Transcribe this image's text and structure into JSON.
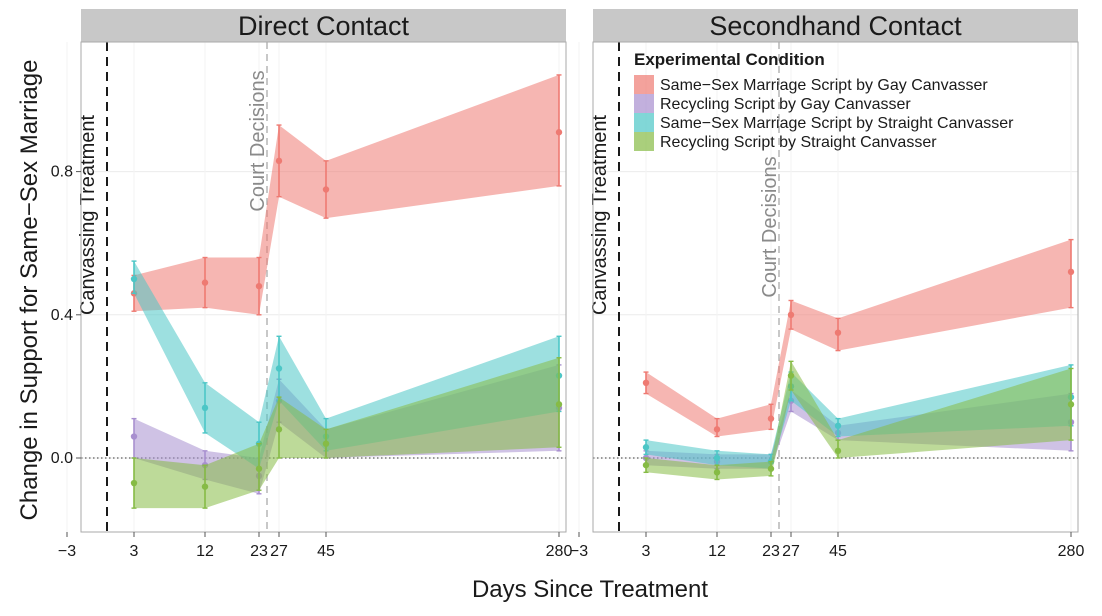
{
  "chart_data": {
    "type": "line",
    "ylabel": "Change in Support for Same−Sex Marriage",
    "xlabel": "Days Since Treatment",
    "xlim": [
      -3,
      280
    ],
    "ylim": [
      -0.22,
      1.21
    ],
    "x_ticks": [
      {
        "value": -3,
        "label": "−3"
      },
      {
        "value": 3,
        "label": "3"
      },
      {
        "value": 12,
        "label": "12"
      },
      {
        "value": 23,
        "label": "23"
      },
      {
        "value": 27,
        "label": "27"
      },
      {
        "value": 45,
        "label": "45"
      },
      {
        "value": 280,
        "label": "280"
      }
    ],
    "y_ticks": [
      {
        "value": 0.0,
        "label": "0.0"
      },
      {
        "value": 0.4,
        "label": "0.4"
      },
      {
        "value": 0.8,
        "label": "0.8"
      }
    ],
    "grid": true,
    "reference_lines": {
      "zero": 0,
      "treatment_label": "Canvassing Treatment",
      "court_label": "Court Decisions"
    },
    "legend": {
      "title": "Experimental Condition",
      "placement": "top-right",
      "entries": [
        "Same−Sex Marriage Script by Gay Canvasser",
        "Recycling Script by Gay Canvasser",
        "Same−Sex Marriage Script by Straight Canvasser",
        "Recycling Script by Straight Canvasser"
      ]
    },
    "colors": {
      "ssm_gay": "#ee7a72",
      "rec_gay": "#a88fcf",
      "ssm_straight": "#4cc6c6",
      "rec_straight": "#86bb45"
    },
    "x": [
      3,
      12,
      23,
      27,
      45,
      280
    ],
    "panels": [
      {
        "title": "Direct Contact",
        "series": [
          {
            "name": "Same−Sex Marriage Script by Gay Canvasser",
            "color_key": "ssm_gay",
            "values": [
              0.46,
              0.49,
              0.48,
              0.83,
              0.75,
              0.91
            ],
            "lower": [
              0.41,
              0.42,
              0.4,
              0.73,
              0.67,
              0.76
            ],
            "upper": [
              0.51,
              0.56,
              0.56,
              0.93,
              0.83,
              1.07
            ]
          },
          {
            "name": "Recycling Script by Gay Canvasser",
            "color_key": "rec_gay",
            "values": [
              0.06,
              -0.02,
              -0.05,
              0.16,
              0.04,
              0.14
            ],
            "lower": [
              0.0,
              -0.06,
              -0.1,
              0.1,
              0.0,
              0.02
            ],
            "upper": [
              0.11,
              0.02,
              0.0,
              0.22,
              0.08,
              0.26
            ]
          },
          {
            "name": "Same−Sex Marriage Script by Straight Canvasser",
            "color_key": "ssm_straight",
            "values": [
              0.5,
              0.14,
              0.04,
              0.25,
              0.06,
              0.23
            ],
            "lower": [
              0.46,
              0.07,
              -0.03,
              0.16,
              0.02,
              0.13
            ],
            "upper": [
              0.55,
              0.21,
              0.1,
              0.34,
              0.11,
              0.34
            ]
          },
          {
            "name": "Recycling Script by Straight Canvasser",
            "color_key": "rec_straight",
            "values": [
              -0.07,
              -0.08,
              -0.03,
              0.08,
              0.04,
              0.15
            ],
            "lower": [
              -0.14,
              -0.14,
              -0.09,
              0.0,
              0.0,
              0.03
            ],
            "upper": [
              0.0,
              -0.02,
              0.04,
              0.17,
              0.08,
              0.28
            ]
          }
        ]
      },
      {
        "title": "Secondhand Contact",
        "series": [
          {
            "name": "Same−Sex Marriage Script by Gay Canvasser",
            "color_key": "ssm_gay",
            "values": [
              0.21,
              0.08,
              0.11,
              0.4,
              0.35,
              0.52
            ],
            "lower": [
              0.18,
              0.06,
              0.08,
              0.36,
              0.3,
              0.42
            ],
            "upper": [
              0.24,
              0.11,
              0.15,
              0.44,
              0.39,
              0.61
            ]
          },
          {
            "name": "Recycling Script by Gay Canvasser",
            "color_key": "rec_gay",
            "values": [
              0.0,
              -0.01,
              -0.01,
              0.16,
              0.07,
              0.1
            ],
            "lower": [
              -0.02,
              -0.03,
              -0.03,
              0.13,
              0.05,
              0.02
            ],
            "upper": [
              0.02,
              0.01,
              0.01,
              0.19,
              0.09,
              0.18
            ]
          },
          {
            "name": "Same−Sex Marriage Script by Straight Canvasser",
            "color_key": "ssm_straight",
            "values": [
              0.03,
              0.0,
              -0.01,
              0.2,
              0.09,
              0.17
            ],
            "lower": [
              0.01,
              -0.02,
              -0.03,
              0.16,
              0.06,
              0.09
            ],
            "upper": [
              0.05,
              0.02,
              0.01,
              0.24,
              0.11,
              0.26
            ]
          },
          {
            "name": "Recycling Script by Straight Canvasser",
            "color_key": "rec_straight",
            "values": [
              -0.02,
              -0.04,
              -0.03,
              0.23,
              0.02,
              0.15
            ],
            "lower": [
              -0.04,
              -0.06,
              -0.05,
              0.19,
              0.0,
              0.05
            ],
            "upper": [
              0.0,
              -0.02,
              -0.01,
              0.27,
              0.05,
              0.25
            ]
          }
        ]
      }
    ]
  }
}
